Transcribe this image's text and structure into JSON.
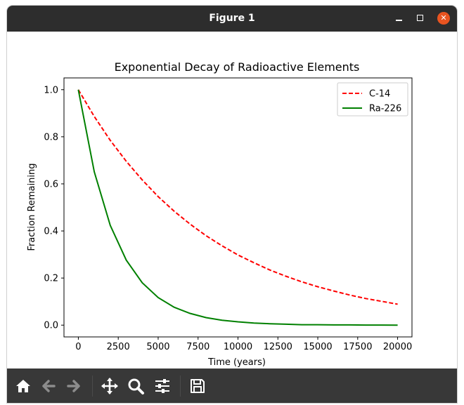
{
  "window": {
    "title": "Figure 1"
  },
  "toolbar": {
    "buttons": [
      {
        "name": "home-icon"
      },
      {
        "name": "back-icon"
      },
      {
        "name": "forward-icon"
      },
      {
        "name": "pan-icon"
      },
      {
        "name": "zoom-icon"
      },
      {
        "name": "configure-subplots-icon"
      },
      {
        "name": "save-icon"
      }
    ]
  },
  "colors": {
    "titlebar": "#2d2d2d",
    "toolbar": "#383838",
    "close": "#e95420",
    "c14": "#ff0000",
    "ra226": "#008000"
  },
  "chart_data": {
    "type": "line",
    "title": "Exponential Decay of Radioactive Elements",
    "xlabel": "Time (years)",
    "ylabel": "Fraction Remaining",
    "xlim": [
      -900,
      20900
    ],
    "ylim": [
      -0.05,
      1.05
    ],
    "xticks": [
      0,
      2500,
      5000,
      7500,
      10000,
      12500,
      15000,
      17500,
      20000
    ],
    "xtick_labels": [
      "0",
      "2500",
      "5000",
      "7500",
      "10000",
      "12500",
      "15000",
      "17500",
      "20000"
    ],
    "yticks": [
      0.0,
      0.2,
      0.4,
      0.6,
      0.8,
      1.0
    ],
    "ytick_labels": [
      "0.0",
      "0.2",
      "0.4",
      "0.6",
      "0.8",
      "1.0"
    ],
    "legend": "top-right",
    "x": [
      0,
      1000,
      2000,
      3000,
      4000,
      5000,
      6000,
      7000,
      8000,
      9000,
      10000,
      11000,
      12000,
      13000,
      14000,
      15000,
      16000,
      17000,
      18000,
      19000,
      20000
    ],
    "series": [
      {
        "name": "C-14",
        "style": "dashed",
        "color": "#ff0000",
        "values": [
          1.0,
          0.886,
          0.785,
          0.696,
          0.617,
          0.546,
          0.484,
          0.429,
          0.38,
          0.337,
          0.298,
          0.265,
          0.234,
          0.208,
          0.184,
          0.163,
          0.145,
          0.128,
          0.113,
          0.101,
          0.089
        ]
      },
      {
        "name": "Ra-226",
        "style": "solid",
        "color": "#008000",
        "values": [
          1.0,
          0.651,
          0.424,
          0.276,
          0.18,
          0.117,
          0.076,
          0.05,
          0.032,
          0.021,
          0.014,
          0.009,
          0.006,
          0.004,
          0.002,
          0.002,
          0.001,
          0.001,
          0.0005,
          0.0003,
          0.0002
        ]
      }
    ]
  }
}
